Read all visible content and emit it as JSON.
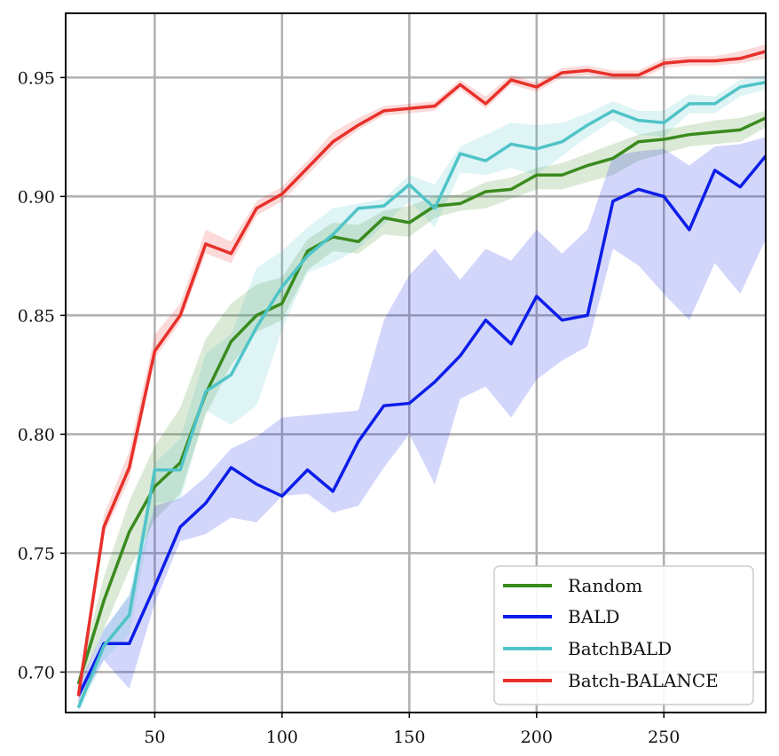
{
  "chart_data": {
    "type": "line",
    "title": "",
    "xlabel": "",
    "ylabel": "",
    "xlim": [
      15,
      290
    ],
    "ylim": [
      0.683,
      0.977
    ],
    "xticks": [
      50,
      100,
      150,
      200,
      250
    ],
    "xtick_labels": [
      "50",
      "100",
      "150",
      "200",
      "250"
    ],
    "yticks": [
      0.7,
      0.75,
      0.8,
      0.85,
      0.9,
      0.95
    ],
    "ytick_labels": [
      "0.70",
      "0.75",
      "0.80",
      "0.85",
      "0.90",
      "0.95"
    ],
    "grid": true,
    "legend_position": "lower-right",
    "x": [
      20,
      30,
      40,
      50,
      60,
      70,
      80,
      90,
      100,
      110,
      120,
      130,
      140,
      150,
      160,
      170,
      180,
      190,
      200,
      210,
      220,
      230,
      240,
      250,
      260,
      270,
      280,
      290
    ],
    "series": [
      {
        "name": "Random",
        "color": "#3a8a1e",
        "values": [
          0.695,
          0.73,
          0.759,
          0.778,
          0.788,
          0.817,
          0.839,
          0.85,
          0.855,
          0.877,
          0.883,
          0.881,
          0.891,
          0.889,
          0.896,
          0.897,
          0.902,
          0.903,
          0.909,
          0.909,
          0.913,
          0.916,
          0.923,
          0.924,
          0.926,
          0.927,
          0.928,
          0.933
        ],
        "lower": [
          0.692,
          0.718,
          0.743,
          0.764,
          0.775,
          0.808,
          0.829,
          0.843,
          0.848,
          0.869,
          0.877,
          0.876,
          0.884,
          0.883,
          0.891,
          0.894,
          0.895,
          0.899,
          0.903,
          0.903,
          0.906,
          0.909,
          0.915,
          0.918,
          0.921,
          0.922,
          0.923,
          0.929
        ],
        "upper": [
          0.698,
          0.74,
          0.772,
          0.795,
          0.811,
          0.84,
          0.855,
          0.863,
          0.866,
          0.882,
          0.889,
          0.888,
          0.894,
          0.896,
          0.9,
          0.901,
          0.906,
          0.908,
          0.912,
          0.914,
          0.918,
          0.922,
          0.926,
          0.928,
          0.93,
          0.932,
          0.933,
          0.936
        ]
      },
      {
        "name": "BALD",
        "color": "#0d1ee8",
        "values": [
          0.69,
          0.712,
          0.712,
          0.736,
          0.761,
          0.771,
          0.786,
          0.779,
          0.774,
          0.785,
          0.776,
          0.797,
          0.812,
          0.813,
          0.822,
          0.833,
          0.848,
          0.838,
          0.858,
          0.848,
          0.85,
          0.898,
          0.903,
          0.9,
          0.886,
          0.911,
          0.904,
          0.917
        ],
        "lower": [
          0.686,
          0.705,
          0.693,
          0.729,
          0.755,
          0.758,
          0.765,
          0.763,
          0.774,
          0.775,
          0.767,
          0.77,
          0.786,
          0.8,
          0.779,
          0.815,
          0.82,
          0.807,
          0.823,
          0.831,
          0.837,
          0.878,
          0.871,
          0.859,
          0.848,
          0.872,
          0.859,
          0.882
        ],
        "upper": [
          0.694,
          0.718,
          0.732,
          0.77,
          0.773,
          0.782,
          0.794,
          0.799,
          0.807,
          0.808,
          0.809,
          0.81,
          0.848,
          0.867,
          0.878,
          0.865,
          0.878,
          0.873,
          0.886,
          0.876,
          0.886,
          0.917,
          0.919,
          0.92,
          0.913,
          0.921,
          0.922,
          0.925
        ]
      },
      {
        "name": "BatchBALD",
        "color": "#4fc4c8",
        "values": [
          0.685,
          0.711,
          0.724,
          0.785,
          0.785,
          0.818,
          0.825,
          0.845,
          0.862,
          0.875,
          0.884,
          0.895,
          0.896,
          0.905,
          0.895,
          0.918,
          0.915,
          0.922,
          0.92,
          0.923,
          0.93,
          0.936,
          0.932,
          0.931,
          0.939,
          0.939,
          0.946,
          0.948
        ],
        "lower": [
          0.683,
          0.705,
          0.716,
          0.771,
          0.772,
          0.81,
          0.804,
          0.812,
          0.844,
          0.868,
          0.872,
          0.878,
          0.888,
          0.898,
          0.887,
          0.91,
          0.909,
          0.912,
          0.909,
          0.917,
          0.925,
          0.932,
          0.926,
          0.925,
          0.935,
          0.935,
          0.942,
          0.945
        ],
        "upper": [
          0.688,
          0.717,
          0.733,
          0.788,
          0.798,
          0.834,
          0.842,
          0.87,
          0.877,
          0.887,
          0.895,
          0.897,
          0.899,
          0.909,
          0.905,
          0.921,
          0.926,
          0.931,
          0.93,
          0.931,
          0.935,
          0.94,
          0.936,
          0.936,
          0.943,
          0.942,
          0.949,
          0.951
        ]
      },
      {
        "name": "Batch-BALANCE",
        "color": "#e8302a",
        "values": [
          0.69,
          0.761,
          0.786,
          0.835,
          0.85,
          0.88,
          0.876,
          0.895,
          0.901,
          0.912,
          0.923,
          0.93,
          0.936,
          0.937,
          0.938,
          0.947,
          0.939,
          0.949,
          0.946,
          0.952,
          0.953,
          0.951,
          0.951,
          0.956,
          0.957,
          0.957,
          0.958,
          0.961
        ],
        "lower": [
          0.687,
          0.758,
          0.781,
          0.832,
          0.847,
          0.876,
          0.872,
          0.892,
          0.898,
          0.909,
          0.92,
          0.928,
          0.934,
          0.935,
          0.936,
          0.945,
          0.937,
          0.947,
          0.944,
          0.95,
          0.951,
          0.949,
          0.949,
          0.954,
          0.955,
          0.955,
          0.956,
          0.958
        ],
        "upper": [
          0.694,
          0.766,
          0.793,
          0.842,
          0.855,
          0.886,
          0.881,
          0.898,
          0.904,
          0.915,
          0.927,
          0.933,
          0.938,
          0.939,
          0.94,
          0.949,
          0.942,
          0.951,
          0.948,
          0.954,
          0.955,
          0.953,
          0.953,
          0.958,
          0.959,
          0.959,
          0.961,
          0.964
        ]
      }
    ],
    "legend": [
      {
        "label": "Random",
        "color": "#3a8a1e"
      },
      {
        "label": "BALD",
        "color": "#0d1ee8"
      },
      {
        "label": "BatchBALD",
        "color": "#4fc4c8"
      },
      {
        "label": "Batch-BALANCE",
        "color": "#e8302a"
      }
    ]
  }
}
